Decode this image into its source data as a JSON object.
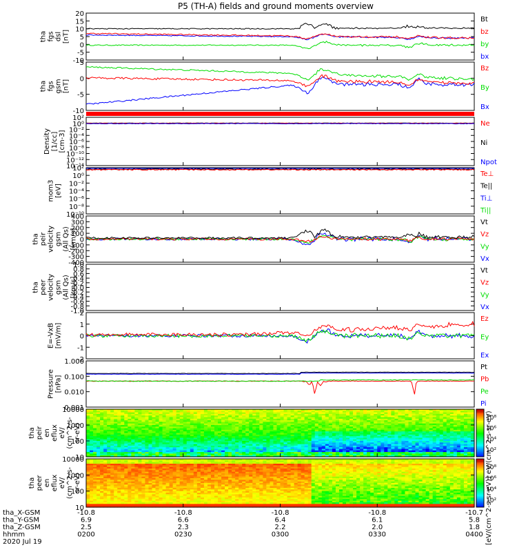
{
  "title": "P5 (TH-A) fields and ground moments overview",
  "date_label": "2020 Jul 19",
  "colors": {
    "black": "#000000",
    "red": "#ff0000",
    "green": "#00dd00",
    "blue": "#0000ff"
  },
  "chart_data": [
    {
      "id": "fgs-dsl",
      "type": "line",
      "ylabel": [
        "tha",
        "fgs",
        "dsl",
        "[nT]"
      ],
      "yticks": [
        "20",
        "15",
        "10",
        "5",
        "0",
        "-5",
        "-10"
      ],
      "ylim": [
        -10,
        20
      ],
      "legend": [
        {
          "label": "Bt",
          "color": "black"
        },
        {
          "label": "bz",
          "color": "red"
        },
        {
          "label": "by",
          "color": "green"
        },
        {
          "label": "bx",
          "color": "blue"
        }
      ]
    },
    {
      "id": "fgs-gsm",
      "type": "line",
      "ylabel": [
        "tha",
        "fgs",
        "gsm",
        "[nT]"
      ],
      "yticks": [
        "5",
        "0",
        "-5",
        "-10"
      ],
      "ylim": [
        -12,
        8
      ],
      "legend": [
        {
          "label": "Bz",
          "color": "red"
        },
        {
          "label": "By",
          "color": "green"
        },
        {
          "label": "Bx",
          "color": "blue"
        }
      ]
    },
    {
      "id": "density",
      "type": "line",
      "log": true,
      "ylabel": [
        "Density",
        "[1/cc]",
        "[cm-3]"
      ],
      "yticks": [
        "10²",
        "10⁰",
        "10⁻²",
        "10⁻⁴",
        "10⁻⁶",
        "10⁻⁸",
        "10⁻¹⁰",
        "10⁻¹²",
        "10⁻¹⁴"
      ],
      "ylim": [
        1e-14,
        100
      ],
      "legend": [
        {
          "label": "Ne",
          "color": "red"
        },
        {
          "label": "Ni",
          "color": "black"
        },
        {
          "label": "Npot",
          "color": "blue"
        }
      ]
    },
    {
      "id": "temperature",
      "type": "line",
      "log": true,
      "ylabel": [
        "mom3",
        "[eV]"
      ],
      "yticks": [
        "10²",
        "10⁰",
        "10⁻²",
        "10⁻⁴",
        "10⁻⁶",
        "10⁻⁸",
        "10⁻¹⁰"
      ],
      "ylim": [
        1e-10,
        100
      ],
      "legend": [
        {
          "label": "Te⊥",
          "color": "red"
        },
        {
          "label": "Te||",
          "color": "black"
        },
        {
          "label": "Ti⊥",
          "color": "blue"
        },
        {
          "label": "Ti||",
          "color": "green"
        }
      ]
    },
    {
      "id": "peir-velocity",
      "type": "line",
      "ylabel": [
        "tha",
        "peir",
        "velocity",
        "gsm",
        "(All Qs)",
        "[km/s]"
      ],
      "yticks": [
        "400",
        "300",
        "200",
        "100",
        "0",
        "-100",
        "-200",
        "-300",
        "-400"
      ],
      "ylim": [
        -400,
        400
      ],
      "legend": [
        {
          "label": "Vt",
          "color": "black"
        },
        {
          "label": "Vz",
          "color": "red"
        },
        {
          "label": "Vy",
          "color": "green"
        },
        {
          "label": "Vx",
          "color": "blue"
        }
      ]
    },
    {
      "id": "peer-velocity",
      "type": "line",
      "ylabel": [
        "tha",
        "peer",
        "velocity",
        "gsm",
        "(All Qs)",
        "[km/s]"
      ],
      "yticks": [
        "1.0",
        "0.8",
        "0.6",
        "0.4",
        "0.2",
        "0.0",
        "-0.2",
        "-0.4",
        "-0.6",
        "-0.8",
        "-1.0"
      ],
      "ylim": [
        -1,
        1
      ],
      "legend": [
        {
          "label": "Vt",
          "color": "black"
        },
        {
          "label": "Vz",
          "color": "red"
        },
        {
          "label": "Vy",
          "color": "green"
        },
        {
          "label": "Vx",
          "color": "blue"
        }
      ]
    },
    {
      "id": "efield",
      "type": "line",
      "ylabel": [
        "E=-VxB",
        "[mV/m]"
      ],
      "yticks": [
        "2",
        "1",
        "0",
        "-1",
        "-2"
      ],
      "ylim": [
        -2,
        2
      ],
      "legend": [
        {
          "label": "Ez",
          "color": "red"
        },
        {
          "label": "Ey",
          "color": "green"
        },
        {
          "label": "Ex",
          "color": "blue"
        }
      ]
    },
    {
      "id": "pressure",
      "type": "line",
      "log": true,
      "ylabel": [
        "Pressure",
        "[nPa]"
      ],
      "yticks": [
        "1.000",
        "0.100",
        "0.010",
        "0.001"
      ],
      "ylim": [
        0.0005,
        1.5
      ],
      "legend": [
        {
          "label": "Pt",
          "color": "black"
        },
        {
          "label": "Pb",
          "color": "red"
        },
        {
          "label": "Pe",
          "color": "green"
        },
        {
          "label": "Pi",
          "color": "blue"
        }
      ]
    },
    {
      "id": "peir-eflux",
      "type": "heatmap",
      "ylabel": [
        "tha",
        "peir",
        "en",
        "eflux",
        "eV/",
        "(cm^2-s-",
        "sr-eV)"
      ],
      "yticks": [
        "10000",
        "1000",
        "100",
        "10"
      ],
      "ylim": [
        5,
        25000
      ]
    },
    {
      "id": "peer-eflux",
      "type": "heatmap",
      "ylabel": [
        "tha",
        "peer",
        "en",
        "eflux",
        "eV/",
        "(cm^2-s-",
        "sr-eV)"
      ],
      "yticks": [
        "10000",
        "1000",
        "100",
        "10"
      ],
      "ylim": [
        5,
        25000
      ]
    }
  ],
  "colorbars": [
    {
      "ticks": [
        "10⁸",
        "10⁶",
        "10⁴",
        "10²"
      ]
    },
    {
      "ticks": [
        "10⁸",
        "10⁶",
        "10⁴",
        "10²"
      ]
    }
  ],
  "colorbar_label": "[eV/(cm^2-s-sr-eV)]   eV/(cm^2-s-sr-eV)",
  "x_axis": {
    "rows": [
      {
        "label": "tha_X-GSM",
        "values": [
          "-10.8",
          "-10.8",
          "-10.8",
          "-10.8",
          "-10.7"
        ]
      },
      {
        "label": "tha_Y-GSM",
        "values": [
          "6.9",
          "6.6",
          "6.4",
          "6.1",
          "5.8"
        ]
      },
      {
        "label": "tha_Z-GSM",
        "values": [
          "2.5",
          "2.3",
          "2.2",
          "2.0",
          "1.8"
        ]
      },
      {
        "label": "hhmm",
        "values": [
          "0200",
          "0230",
          "0300",
          "0330",
          "0400"
        ]
      }
    ]
  }
}
